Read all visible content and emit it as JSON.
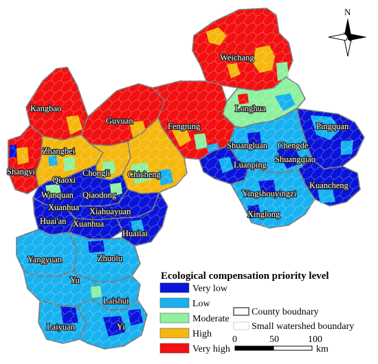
{
  "colors": {
    "very_low": "#0a14d8",
    "low": "#18b2f0",
    "moderate": "#8ff0a0",
    "high": "#f5b80e",
    "very_high": "#f21010",
    "county_boundary": "#7a7a7a",
    "watershed_boundary": "#c8c8c8"
  },
  "north_arrow": {
    "label": "N",
    "icon": "compass-rose-icon"
  },
  "counties": [
    {
      "name": "Weichang",
      "level": "very_high"
    },
    {
      "name": "Kangbao",
      "level": "very_high"
    },
    {
      "name": "Guyuan",
      "level": "very_high"
    },
    {
      "name": "Fengning",
      "level": "very_high"
    },
    {
      "name": "Longhua",
      "level": "moderate"
    },
    {
      "name": "Pingquan",
      "level": "very_low"
    },
    {
      "name": "Zhangbei",
      "level": "high"
    },
    {
      "name": "Shangyi",
      "level": "very_high"
    },
    {
      "name": "Chongli",
      "level": "high"
    },
    {
      "name": "Chicheng",
      "level": "high"
    },
    {
      "name": "Shuangluan",
      "level": "low"
    },
    {
      "name": "Chengde",
      "level": "low"
    },
    {
      "name": "Shuangqiao",
      "level": "low"
    },
    {
      "name": "Luanping",
      "level": "very_low"
    },
    {
      "name": "Kuancheng",
      "level": "very_low"
    },
    {
      "name": "Qiaoxi",
      "level": "very_low"
    },
    {
      "name": "Wanquan",
      "level": "moderate"
    },
    {
      "name": "Qiaodong",
      "level": "very_low"
    },
    {
      "name": "Xuanhua",
      "level": "very_low"
    },
    {
      "name": "Xiahuayuan",
      "level": "very_low"
    },
    {
      "name": "Yingshouyingzi",
      "level": "low"
    },
    {
      "name": "Xinglong",
      "level": "low"
    },
    {
      "name": "Huai'an",
      "level": "very_low"
    },
    {
      "name": "Xuanhua",
      "level": "very_low"
    },
    {
      "name": "Huailai",
      "level": "very_low"
    },
    {
      "name": "Yangyuan",
      "level": "low"
    },
    {
      "name": "Zhuolu",
      "level": "low"
    },
    {
      "name": "Yu",
      "level": "low"
    },
    {
      "name": "Laishui",
      "level": "low"
    },
    {
      "name": "Laiyuan",
      "level": "low"
    },
    {
      "name": "Yi",
      "level": "low"
    }
  ],
  "legend": {
    "title": "Ecological compensation priority level",
    "items": [
      {
        "label": "Very low",
        "color": "#0a14d8"
      },
      {
        "label": "Low",
        "color": "#18b2f0"
      },
      {
        "label": "Moderate",
        "color": "#8ff0a0"
      },
      {
        "label": "High",
        "color": "#f5b80e"
      },
      {
        "label": "Very high",
        "color": "#f21010"
      }
    ],
    "boundaries": [
      {
        "label": "County boudnary"
      },
      {
        "label": "Small watershed boundary"
      }
    ]
  },
  "scale_bar": {
    "ticks": [
      "0",
      "50",
      "100"
    ],
    "unit": "km"
  }
}
